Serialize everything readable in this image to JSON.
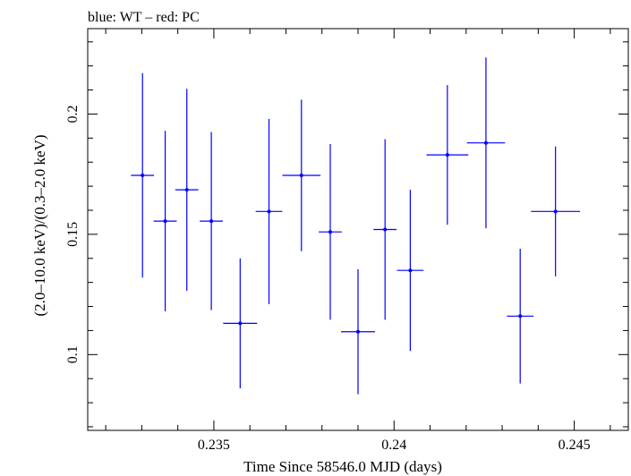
{
  "chart_data": {
    "type": "scatter",
    "title": "blue: WT – red: PC",
    "xlabel": "Time Since 58546.0 MJD (days)",
    "ylabel": "(2.0–10.0 keV)/(0.3–2.0 keV)",
    "xlim": [
      0.2315,
      0.2465
    ],
    "ylim": [
      0.0685,
      0.2355
    ],
    "x_ticks": [
      {
        "value": 0.235,
        "label": "0.235"
      },
      {
        "value": 0.24,
        "label": "0.24"
      },
      {
        "value": 0.245,
        "label": "0.245"
      }
    ],
    "y_ticks": [
      {
        "value": 0.1,
        "label": "0.1"
      },
      {
        "value": 0.15,
        "label": "0.15"
      },
      {
        "value": 0.2,
        "label": "0.2"
      }
    ],
    "grid": false,
    "series": [
      {
        "name": "WT",
        "color": "#0000ff",
        "points": [
          {
            "x": 0.23302,
            "xerr": 0.00032,
            "y": 0.1745,
            "yerr": 0.0425
          },
          {
            "x": 0.23365,
            "xerr": 0.00032,
            "y": 0.1555,
            "yerr": 0.0375
          },
          {
            "x": 0.23425,
            "xerr": 0.00032,
            "y": 0.1685,
            "yerr": 0.042
          },
          {
            "x": 0.23493,
            "xerr": 0.00032,
            "y": 0.1555,
            "yerr": 0.037
          },
          {
            "x": 0.23573,
            "xerr": 0.00047,
            "y": 0.113,
            "yerr": 0.027
          },
          {
            "x": 0.23653,
            "xerr": 0.00037,
            "y": 0.1595,
            "yerr": 0.0385
          },
          {
            "x": 0.23743,
            "xerr": 0.00053,
            "y": 0.1745,
            "yerr": 0.0315
          },
          {
            "x": 0.23823,
            "xerr": 0.00032,
            "y": 0.151,
            "yerr": 0.0365
          },
          {
            "x": 0.239,
            "xerr": 0.00047,
            "y": 0.1095,
            "yerr": 0.026
          },
          {
            "x": 0.23975,
            "xerr": 0.00032,
            "y": 0.152,
            "yerr": 0.0375
          },
          {
            "x": 0.24045,
            "xerr": 0.00037,
            "y": 0.135,
            "yerr": 0.0335
          },
          {
            "x": 0.24148,
            "xerr": 0.00058,
            "y": 0.183,
            "yerr": 0.029
          },
          {
            "x": 0.24255,
            "xerr": 0.00053,
            "y": 0.188,
            "yerr": 0.0355
          },
          {
            "x": 0.2435,
            "xerr": 0.00037,
            "y": 0.116,
            "yerr": 0.028
          },
          {
            "x": 0.24448,
            "xerr": 0.00068,
            "y": 0.1595,
            "yerr": 0.027
          }
        ]
      }
    ]
  }
}
